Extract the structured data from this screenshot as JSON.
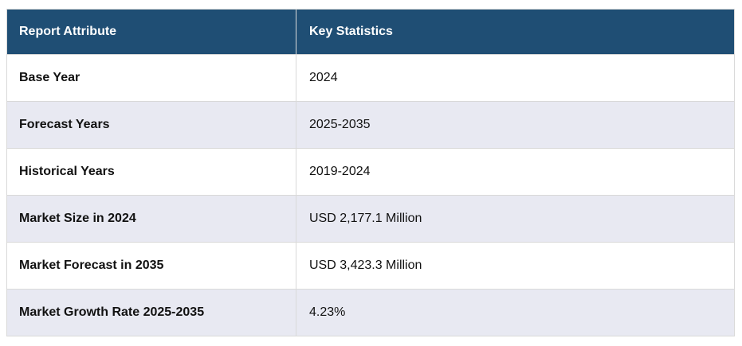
{
  "table": {
    "headers": [
      "Report Attribute",
      "Key Statistics"
    ],
    "rows": [
      {
        "attribute": "Base Year",
        "value": "2024"
      },
      {
        "attribute": "Forecast Years",
        "value": "2025-2035"
      },
      {
        "attribute": "Historical Years",
        "value": "2019-2024"
      },
      {
        "attribute": "Market Size in 2024",
        "value": "USD 2,177.1 Million"
      },
      {
        "attribute": "Market Forecast in 2035",
        "value": "USD 3,423.3 Million"
      },
      {
        "attribute": "Market Growth Rate 2025-2035",
        "value": "4.23%"
      }
    ]
  },
  "colors": {
    "header_bg": "#1F4E74",
    "header_text": "#FFFFFF",
    "row_bg": "#FFFFFF",
    "row_alt_bg": "#E8E9F2",
    "border": "#D9D9D9",
    "text": "#111111"
  },
  "chart_data": {
    "type": "table",
    "columns": [
      "Report Attribute",
      "Key Statistics"
    ],
    "rows": [
      [
        "Base Year",
        "2024"
      ],
      [
        "Forecast Years",
        "2025-2035"
      ],
      [
        "Historical Years",
        "2019-2024"
      ],
      [
        "Market Size in 2024",
        "USD 2,177.1 Million"
      ],
      [
        "Market Forecast in 2035",
        "USD 3,423.3 Million"
      ],
      [
        "Market Growth Rate 2025-2035",
        "4.23%"
      ]
    ]
  }
}
